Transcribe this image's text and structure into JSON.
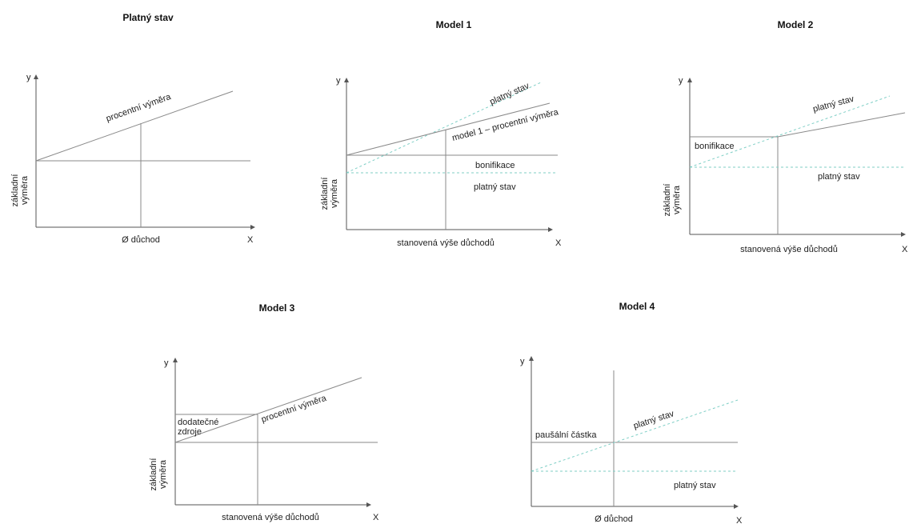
{
  "panels": {
    "platny_stav": {
      "title": "Platný stav",
      "y_axis": "y",
      "x_axis": "X",
      "x_label": "Ø důchod",
      "y_label_line1": "základní",
      "y_label_line2": "výměra",
      "line_label": "procentní výměra"
    },
    "model1": {
      "title": "Model 1",
      "y_axis": "y",
      "x_axis": "X",
      "x_label": "stanovená výše důchodů",
      "y_label_line1": "základní",
      "y_label_line2": "výměra",
      "label_upper_dashed": "platný stav",
      "label_solid": "model 1 – procentní výměra",
      "label_bonus": "bonifikace",
      "label_lower_dashed": "platný stav"
    },
    "model2": {
      "title": "Model 2",
      "y_axis": "y",
      "x_axis": "X",
      "x_label": "stanovená výše důchodů",
      "y_label_line1": "základní",
      "y_label_line2": "výměra",
      "label_bonus": "bonifikace",
      "label_upper": "platný stav",
      "label_lower": "platný stav"
    },
    "model3": {
      "title": "Model 3",
      "y_axis": "y",
      "x_axis": "X",
      "x_label": "stanovená výše důchodů",
      "y_label_line1": "základní",
      "y_label_line2": "výměra",
      "label_sources_line1": "dodatečné",
      "label_sources_line2": "zdroje",
      "line_label": "procentní výměra"
    },
    "model4": {
      "title": "Model 4",
      "y_axis": "y",
      "x_axis": "X",
      "x_label": "Ø důchod",
      "label_flat": "paušální částka",
      "label_upper": "platný stav",
      "label_lower": "platný stav"
    }
  },
  "colors": {
    "axis": "#555555",
    "solid_line": "#8a8a8a",
    "dashed_line": "#7fcfc6"
  }
}
